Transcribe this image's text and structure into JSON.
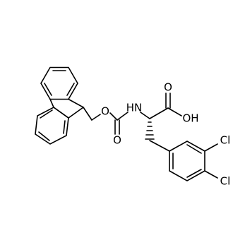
{
  "atoms": {
    "ester_oxygen": "O",
    "amine": "HN",
    "carbamate_oxygen": "O",
    "acid_carbonyl_oxygen": "O",
    "hydroxyl": "OH",
    "chlorine_3": "Cl",
    "chlorine_4": "Cl"
  }
}
